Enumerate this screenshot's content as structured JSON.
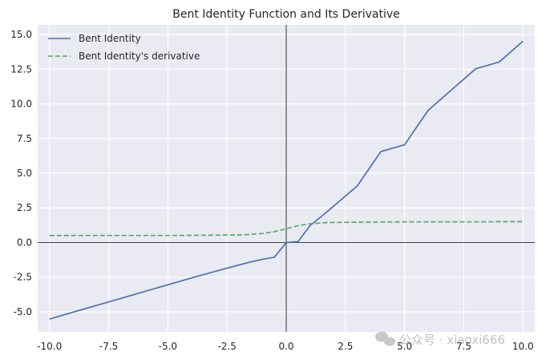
{
  "chart_data": {
    "type": "line",
    "title": "Bent Identity Function and Its Derivative",
    "xlabel": "",
    "ylabel": "",
    "xlim": [
      -10.5,
      10.5
    ],
    "ylim": [
      -6.45,
      15.7
    ],
    "xticks": [
      -10.0,
      -7.5,
      -5.0,
      -2.5,
      0.0,
      2.5,
      5.0,
      7.5,
      10.0
    ],
    "xtick_labels": [
      "-10.0",
      "-7.5",
      "-5.0",
      "-2.5",
      "0.0",
      "2.5",
      "5.0",
      "7.5",
      "10.0"
    ],
    "yticks": [
      -5.0,
      -2.5,
      0.0,
      2.5,
      5.0,
      7.5,
      10.0,
      12.5,
      15.0
    ],
    "ytick_labels": [
      "-5.0",
      "-2.5",
      "0.0",
      "2.5",
      "5.0",
      "7.5",
      "10.0",
      "12.5",
      "15.0"
    ],
    "grid": true,
    "legend_position": "top-left",
    "reference_lines": {
      "x": 0,
      "y": 0
    },
    "x": [
      -10,
      -9,
      -8,
      -7,
      -6,
      -5,
      -4,
      -3,
      -2,
      -1.5,
      -1,
      -0.5,
      0,
      0.5,
      1,
      1.5,
      2,
      3,
      4,
      5,
      6,
      7,
      8,
      9,
      10
    ],
    "series": [
      {
        "name": "Bent Identity",
        "style": "solid",
        "color": "#4c72b0",
        "values": [
          -5.52,
          -5.02,
          -4.53,
          -4.04,
          -3.54,
          -3.05,
          -2.56,
          -2.08,
          -1.62,
          -1.4,
          -1.21,
          -1.06,
          0.0,
          0.06,
          1.21,
          1.9,
          2.62,
          4.08,
          6.56,
          7.05,
          9.54,
          11.04,
          12.53,
          13.02,
          14.52
        ]
      },
      {
        "name": "Bent Identity's derivative",
        "style": "dashed",
        "color": "#55a868",
        "values": [
          0.5,
          0.51,
          0.51,
          0.51,
          0.51,
          0.51,
          0.52,
          0.53,
          0.55,
          0.58,
          0.65,
          0.78,
          1.0,
          1.22,
          1.35,
          1.42,
          1.45,
          1.47,
          1.48,
          1.49,
          1.49,
          1.49,
          1.49,
          1.5,
          1.5
        ]
      }
    ]
  },
  "watermark": {
    "text": "公众号 · xiaoxi666"
  },
  "colors": {
    "plot_background": "#eaeaf2",
    "grid": "#ffffff",
    "reference_line": "#000000",
    "text": "#262626"
  }
}
